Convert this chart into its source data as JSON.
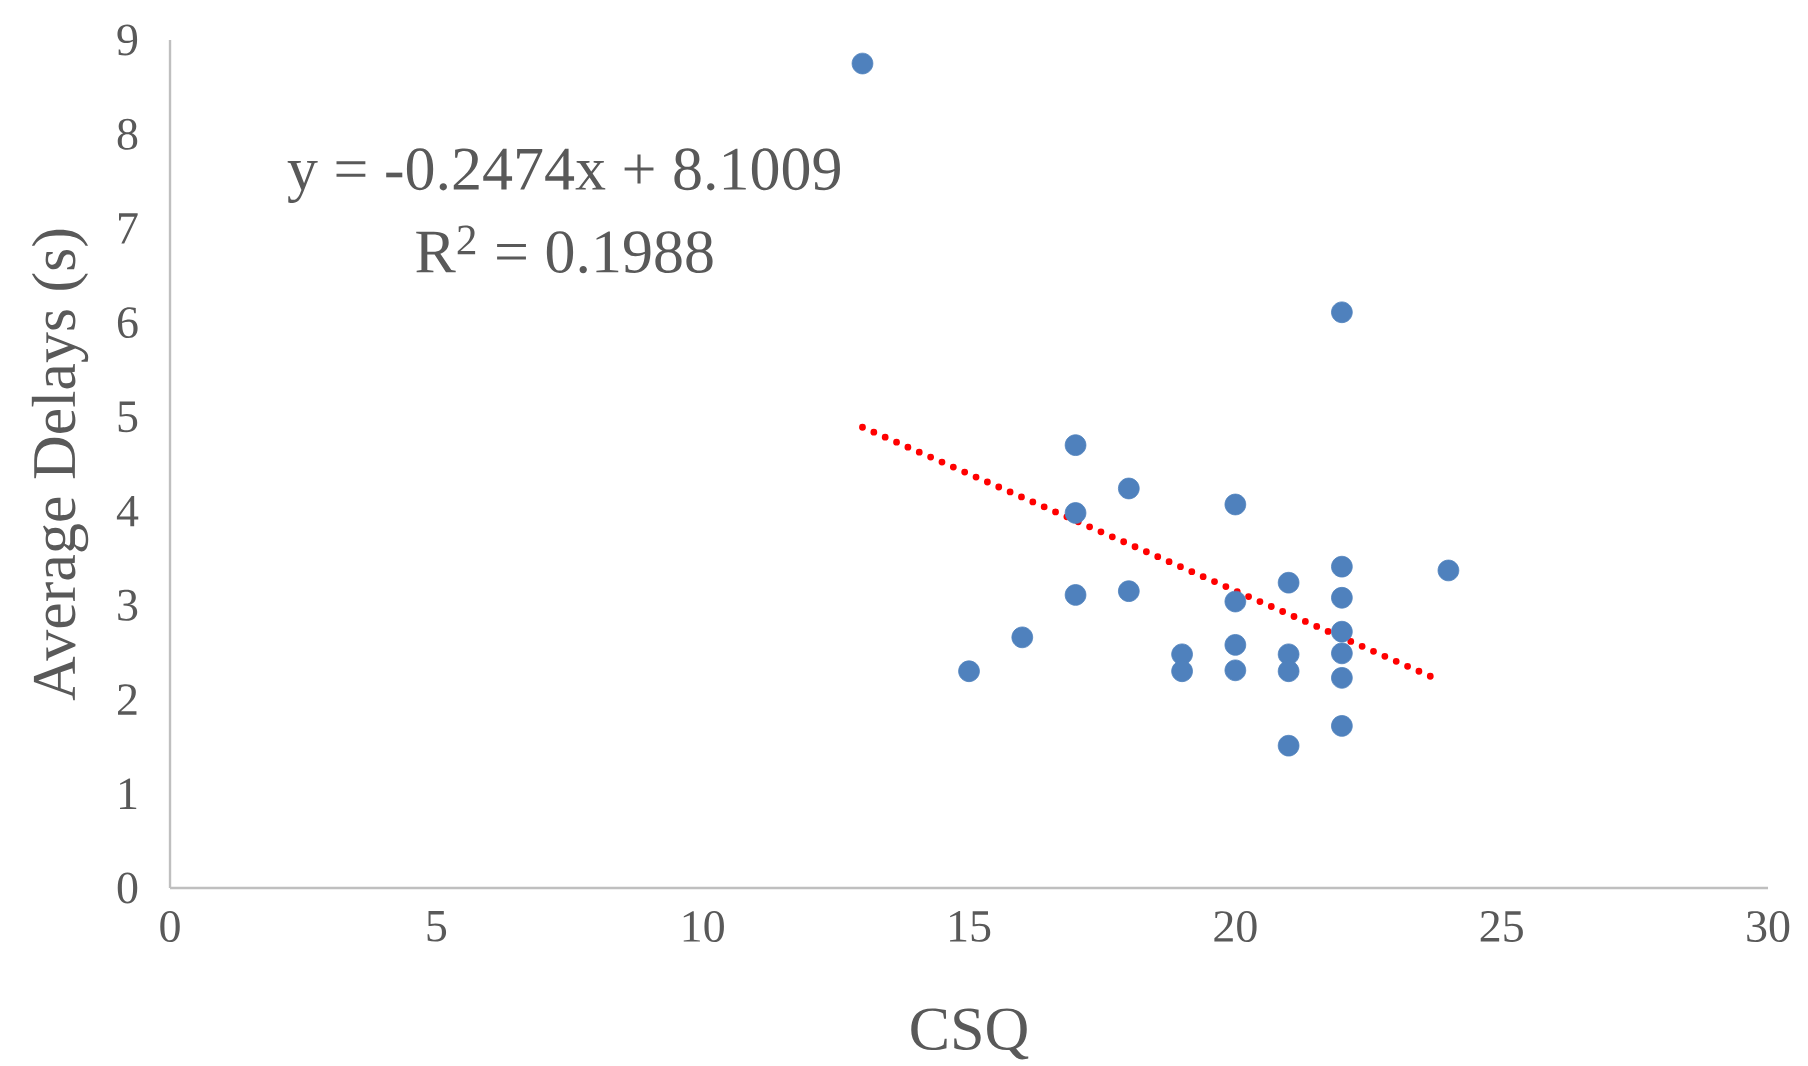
{
  "chart_data": {
    "type": "scatter",
    "xlabel": "CSQ",
    "ylabel": "Average Delays (s)",
    "xlim": [
      0,
      30
    ],
    "xticks": [
      0,
      5,
      10,
      15,
      20,
      25,
      30
    ],
    "ylim": [
      0,
      9
    ],
    "yticks": [
      0,
      1,
      2,
      3,
      4,
      5,
      6,
      7,
      8,
      9
    ],
    "grid": false,
    "annotations": [
      "y = -0.2474x + 8.1009",
      "R$^{2}$ = 0.1988"
    ],
    "series": [
      {
        "color": "#4f81bd",
        "marker": "circle",
        "x": [
          13,
          22,
          17,
          17,
          17,
          18,
          18,
          16,
          15,
          19,
          19,
          20,
          20,
          20,
          20,
          21,
          21,
          21,
          21,
          22,
          22,
          22,
          22,
          22,
          22,
          24
        ],
        "values": [
          8.75,
          6.11,
          4.7,
          3.98,
          3.11,
          4.24,
          3.15,
          2.66,
          2.3,
          2.48,
          2.3,
          4.07,
          3.04,
          2.58,
          2.31,
          3.24,
          2.48,
          2.3,
          1.51,
          3.41,
          3.08,
          2.72,
          2.49,
          2.23,
          1.72,
          3.37
        ]
      },
      {
        "type": "line",
        "color": "#ff0000",
        "line_style": "dotted",
        "marker": "none",
        "x": [
          13,
          23.85
        ],
        "values": [
          4.89,
          2.2
        ]
      }
    ]
  }
}
